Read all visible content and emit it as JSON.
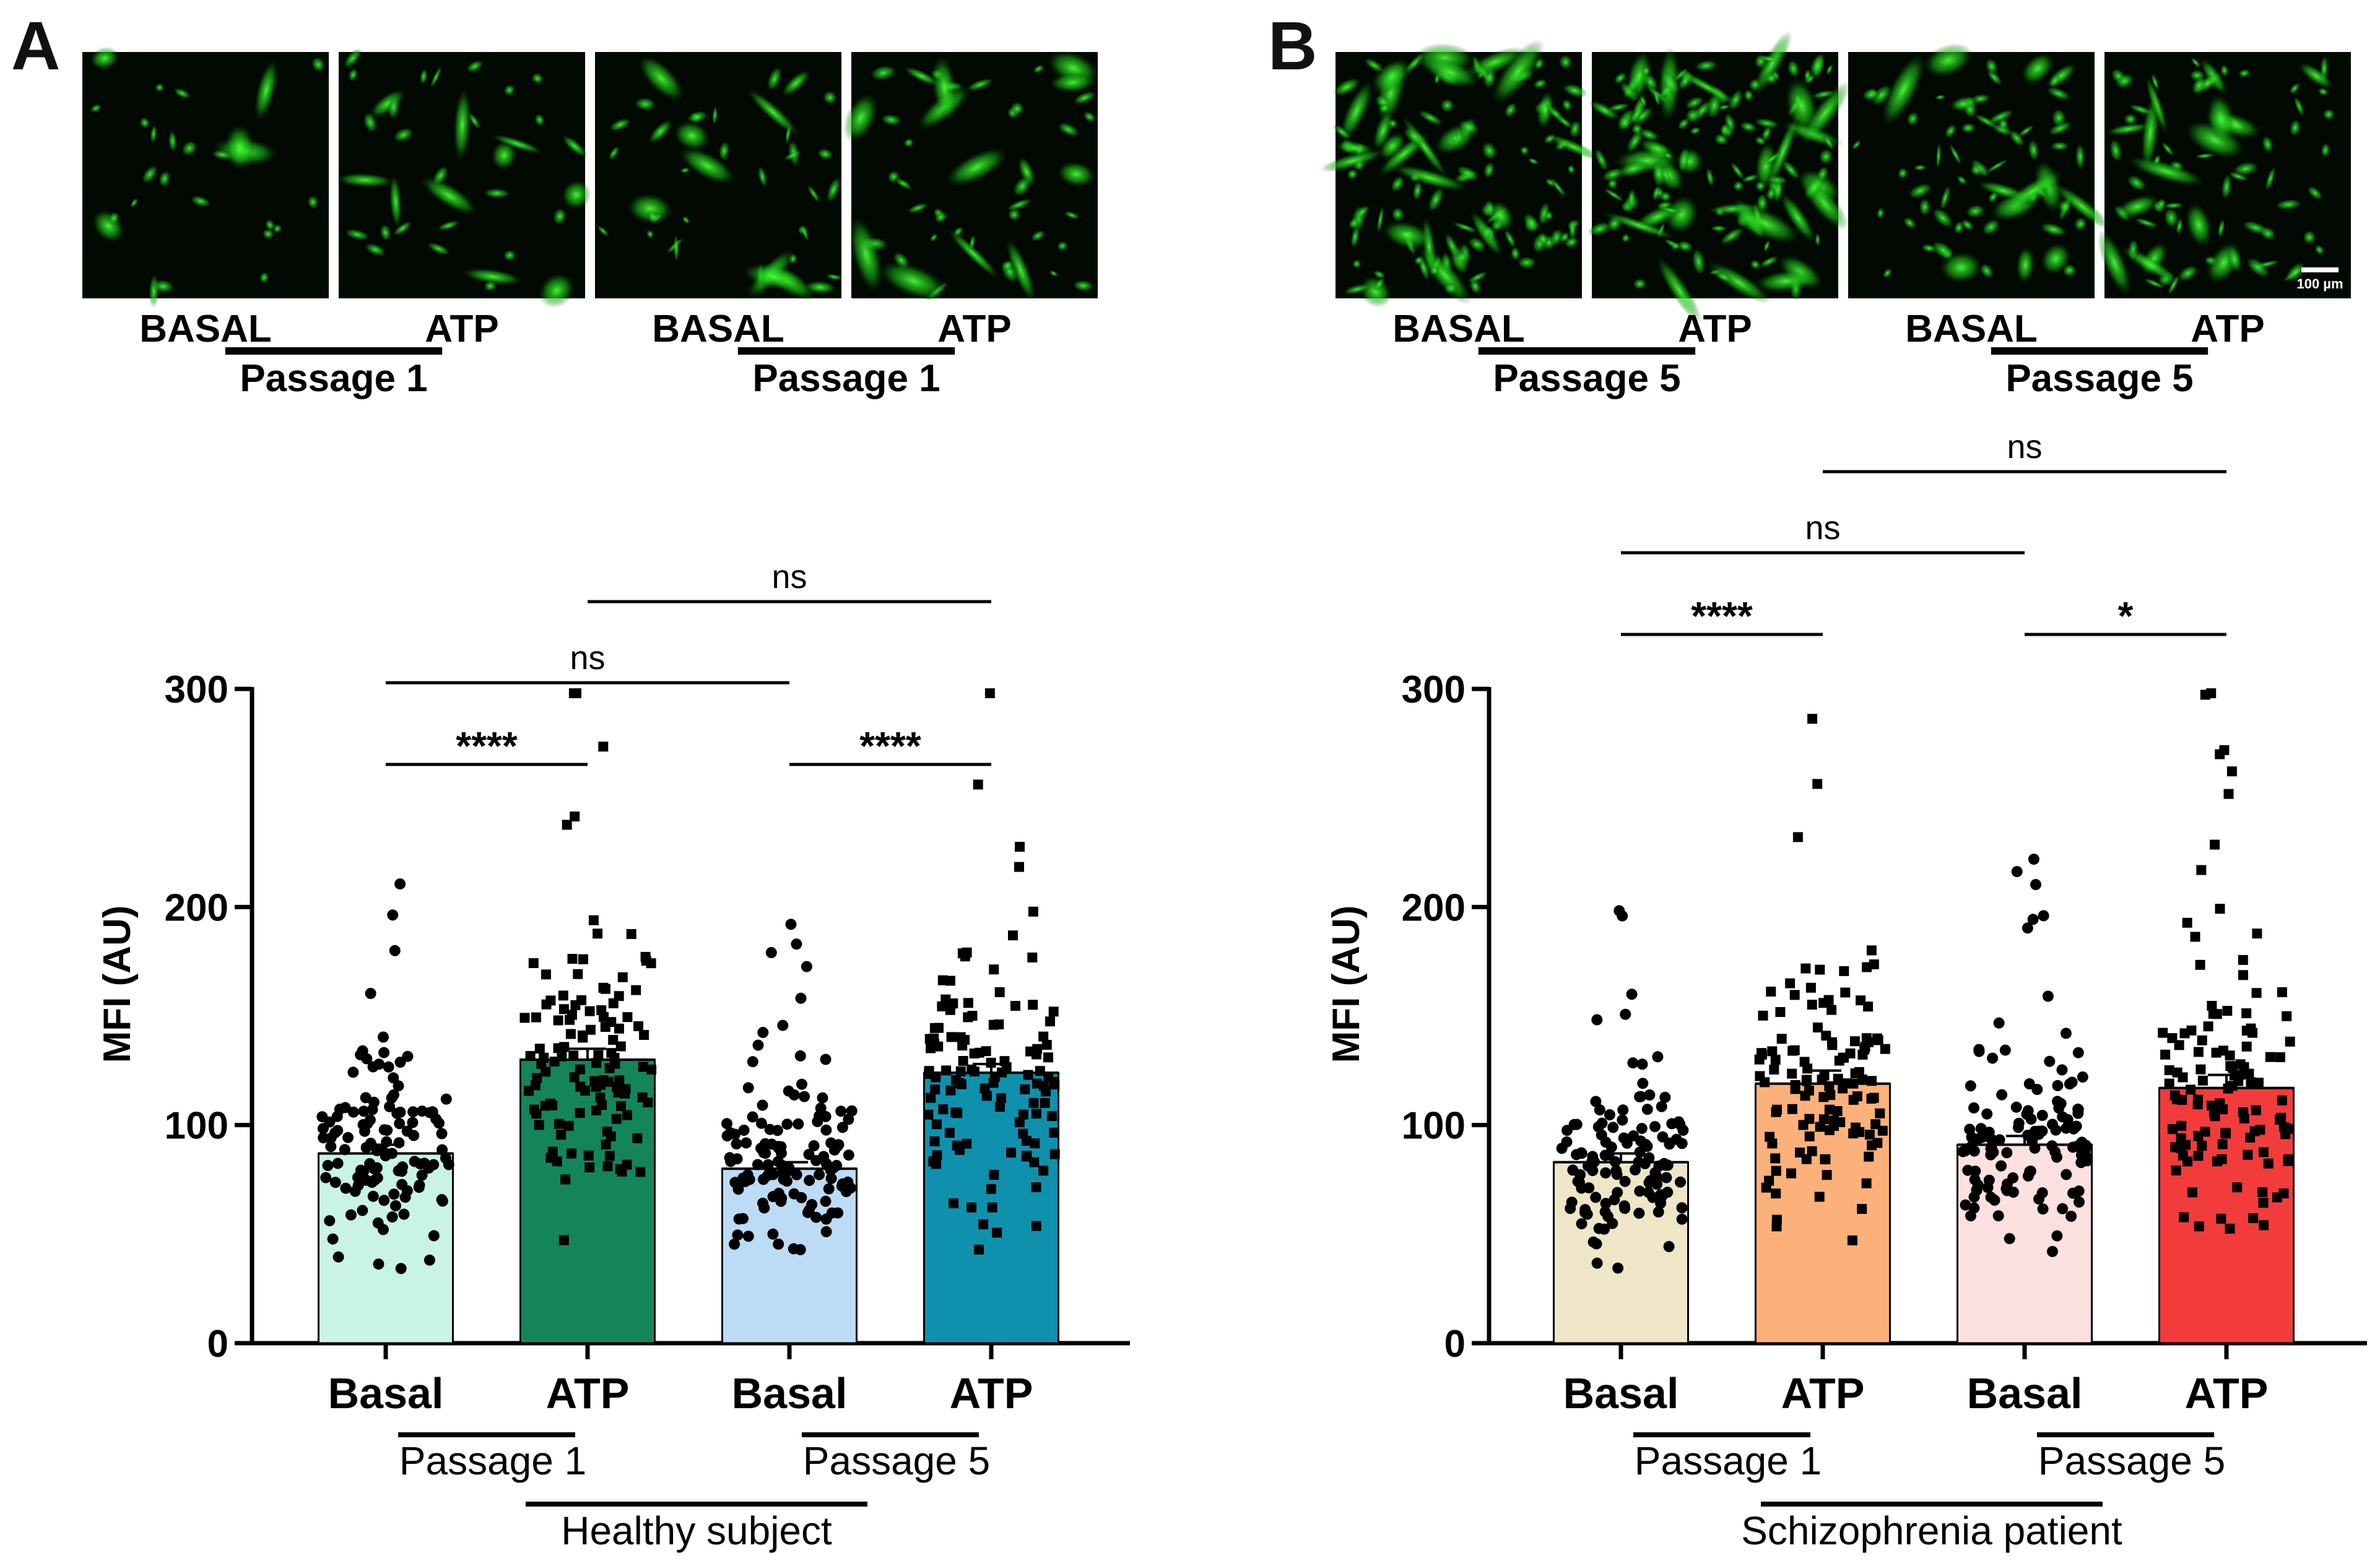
{
  "panels": [
    {
      "letter": "A",
      "micrographs": {
        "labels": [
          "BASAL",
          "ATP",
          "BASAL",
          "ATP"
        ],
        "passages": [
          "Passage 1",
          "Passage 1"
        ],
        "scale_bar": ""
      },
      "chart": {
        "type": "bar",
        "ylabel": "MFI (AU)",
        "ylim": [
          0,
          300
        ],
        "yticks": [
          0,
          100,
          200,
          300
        ],
        "categories": [
          "Basal",
          "ATP",
          "Basal",
          "ATP"
        ],
        "groups": [
          "Passage 1",
          "Passage 5"
        ],
        "subject": "Healthy subject",
        "values": [
          87,
          130,
          80,
          124
        ],
        "sem": [
          4,
          5,
          3,
          4
        ],
        "colors": [
          "#c8f3e6",
          "#14855a",
          "#bcdcf6",
          "#0f91ad"
        ],
        "markers": [
          "circle",
          "square",
          "circle",
          "square"
        ],
        "comparisons": [
          {
            "from": 0,
            "to": 1,
            "label": "****",
            "level": 1
          },
          {
            "from": 2,
            "to": 3,
            "label": "****",
            "level": 1
          },
          {
            "from": 0,
            "to": 2,
            "label": "ns",
            "level": 2
          },
          {
            "from": 1,
            "to": 3,
            "label": "ns",
            "level": 3
          }
        ]
      }
    },
    {
      "letter": "B",
      "micrographs": {
        "labels": [
          "BASAL",
          "ATP",
          "BASAL",
          "ATP"
        ],
        "passages": [
          "Passage 5",
          "Passage 5"
        ],
        "scale_bar": "100 µm"
      },
      "chart": {
        "type": "bar",
        "ylabel": "MFI (AU)",
        "ylim": [
          0,
          300
        ],
        "yticks": [
          0,
          100,
          200,
          300
        ],
        "categories": [
          "Basal",
          "ATP",
          "Basal",
          "ATP"
        ],
        "groups": [
          "Passage 1",
          "Passage 5"
        ],
        "subject": "Schizophrenia patient",
        "values": [
          83,
          119,
          91,
          117
        ],
        "sem": [
          4,
          6,
          4,
          6
        ],
        "colors": [
          "#efe6c8",
          "#fcb17a",
          "#fde0e0",
          "#f23c3c"
        ],
        "markers": [
          "circle",
          "square",
          "circle",
          "square"
        ],
        "comparisons": [
          {
            "from": 0,
            "to": 1,
            "label": "****",
            "level": 1
          },
          {
            "from": 2,
            "to": 3,
            "label": "*",
            "level": 1
          },
          {
            "from": 0,
            "to": 2,
            "label": "ns",
            "level": 2
          },
          {
            "from": 1,
            "to": 3,
            "label": "ns",
            "level": 3
          }
        ]
      }
    }
  ],
  "chart_data": [
    {
      "type": "bar",
      "title": "",
      "xlabel": "",
      "ylabel": "MFI (AU)",
      "ylim": [
        0,
        300
      ],
      "categories": [
        "Basal",
        "ATP",
        "Basal",
        "ATP"
      ],
      "group_labels": [
        "Passage 1",
        "Passage 5"
      ],
      "subject_label": "Healthy subject",
      "series": [
        {
          "name": "",
          "values": [
            87,
            130,
            80,
            124
          ]
        }
      ],
      "annotations": [
        "****",
        "****",
        "ns",
        "ns"
      ]
    },
    {
      "type": "bar",
      "title": "",
      "xlabel": "",
      "ylabel": "MFI (AU)",
      "ylim": [
        0,
        300
      ],
      "categories": [
        "Basal",
        "ATP",
        "Basal",
        "ATP"
      ],
      "group_labels": [
        "Passage 1",
        "Passage 5"
      ],
      "subject_label": "Schizophrenia patient",
      "series": [
        {
          "name": "",
          "values": [
            83,
            119,
            91,
            117
          ]
        }
      ],
      "annotations": [
        "****",
        "*",
        "ns",
        "ns"
      ]
    }
  ]
}
